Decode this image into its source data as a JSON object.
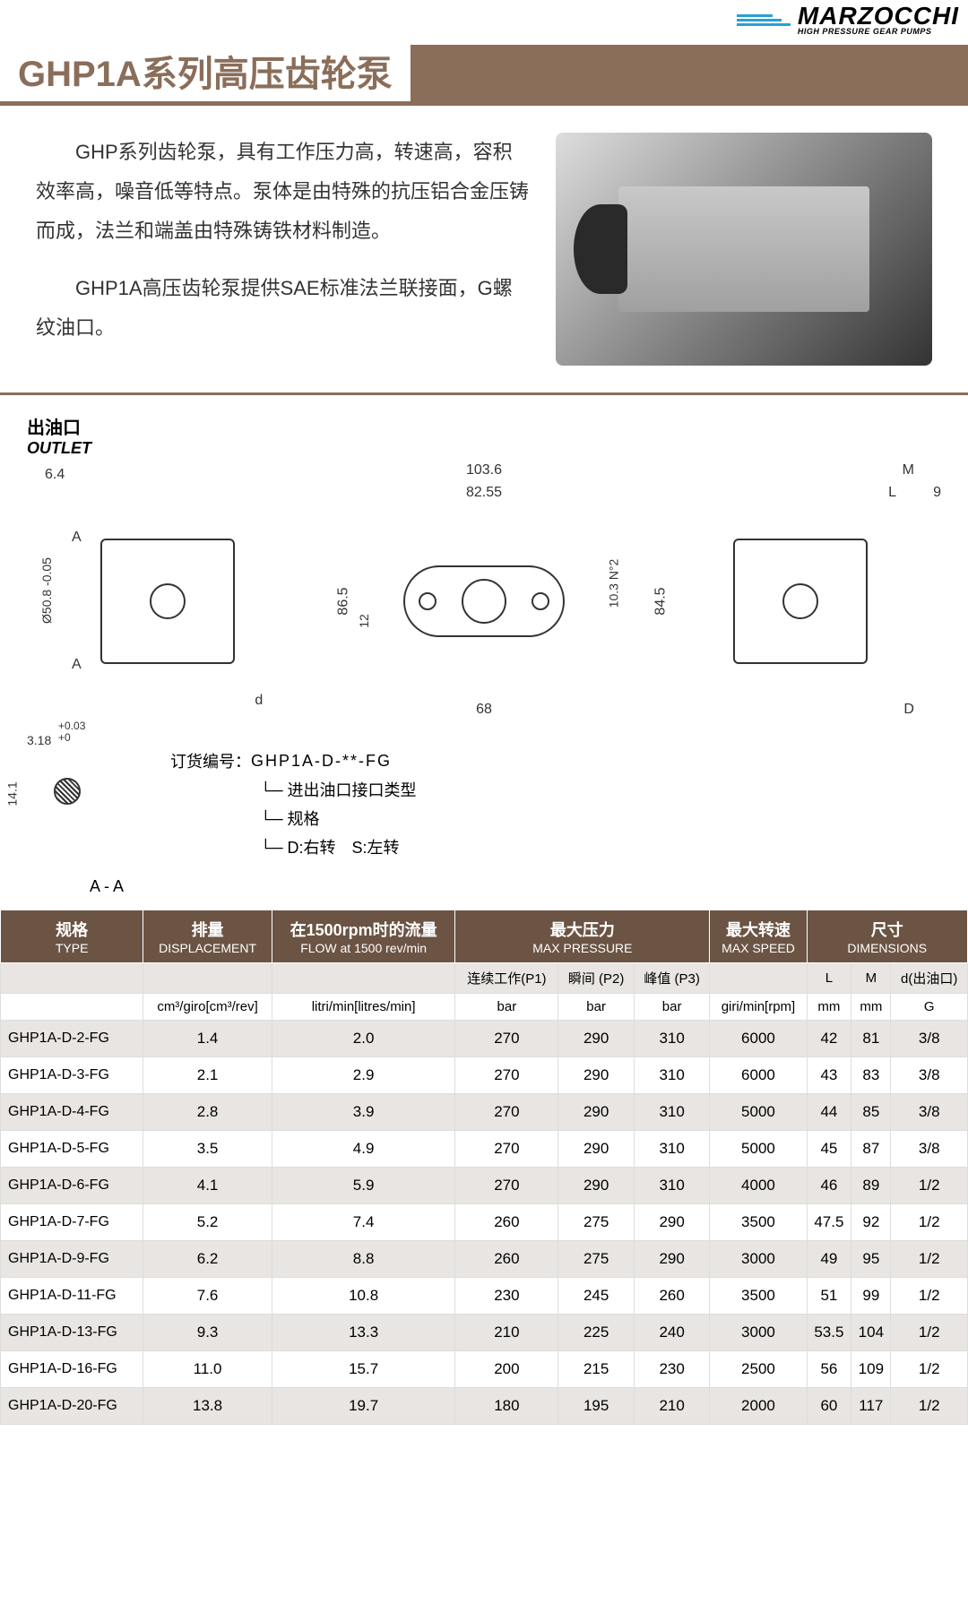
{
  "logo": {
    "brand": "MARZOCCHI",
    "tagline": "HIGH PRESSURE GEAR PUMPS"
  },
  "title": "GHP1A系列高压齿轮泵",
  "intro": {
    "p1": "GHP系列齿轮泵，具有工作压力高，转速高，容积效率高，噪音低等特点。泵体是由特殊的抗压铝合金压铸而成，法兰和端盖由特殊铸铁材料制造。",
    "p2": "GHP1A高压齿轮泵提供SAE标准法兰联接面，G螺纹油口。"
  },
  "outlet": {
    "cn": "出油口",
    "en": "OUTLET"
  },
  "dimensions": {
    "d1": "6.4",
    "d2": "Ø50.8 -0.05",
    "d2sup": "+0",
    "d3": "3.18",
    "d3tol1": "+0.03",
    "d3tol2": "+0",
    "d4": "14.1",
    "d5": "86.5",
    "d6": "12",
    "d7": "103.6",
    "d8": "82.55",
    "d9": "68",
    "d10": "10.3 N°2",
    "d11": "84.5",
    "d12": "M",
    "d13": "L",
    "d14": "9",
    "d15": "2",
    "dd": "d",
    "dD": "D",
    "A": "A",
    "AA": "A - A"
  },
  "order": {
    "label": "订货编号：",
    "code": "GHP1A-D-**-FG",
    "note1": "进出油口接口类型",
    "note2": "规格",
    "note3": "D:右转　S:左转"
  },
  "table": {
    "headers": {
      "type": {
        "cn": "规格",
        "en": "TYPE"
      },
      "disp": {
        "cn": "排量",
        "en": "DISPLACEMENT"
      },
      "flow": {
        "cn": "在1500rpm时的流量",
        "en": "FLOW at 1500 rev/min"
      },
      "press": {
        "cn": "最大压力",
        "en": "MAX PRESSURE"
      },
      "speed": {
        "cn": "最大转速",
        "en": "MAX SPEED"
      },
      "dim": {
        "cn": "尺寸",
        "en": "DIMENSIONS"
      }
    },
    "sub": {
      "p1": "连续工作(P1)",
      "p2": "瞬间 (P2)",
      "p3": "峰值 (P3)",
      "L": "L",
      "M": "M",
      "dout": "d(出油口)"
    },
    "units": {
      "disp": "cm³/giro[cm³/rev]",
      "flow": "litri/min[litres/min]",
      "bar": "bar",
      "speed": "giri/min[rpm]",
      "mm": "mm",
      "g": "G"
    },
    "rows": [
      {
        "type": "GHP1A-D-2-FG",
        "disp": "1.4",
        "flow": "2.0",
        "p1": "270",
        "p2": "290",
        "p3": "310",
        "speed": "6000",
        "L": "42",
        "M": "81",
        "d": "3/8"
      },
      {
        "type": "GHP1A-D-3-FG",
        "disp": "2.1",
        "flow": "2.9",
        "p1": "270",
        "p2": "290",
        "p3": "310",
        "speed": "6000",
        "L": "43",
        "M": "83",
        "d": "3/8"
      },
      {
        "type": "GHP1A-D-4-FG",
        "disp": "2.8",
        "flow": "3.9",
        "p1": "270",
        "p2": "290",
        "p3": "310",
        "speed": "5000",
        "L": "44",
        "M": "85",
        "d": "3/8"
      },
      {
        "type": "GHP1A-D-5-FG",
        "disp": "3.5",
        "flow": "4.9",
        "p1": "270",
        "p2": "290",
        "p3": "310",
        "speed": "5000",
        "L": "45",
        "M": "87",
        "d": "3/8"
      },
      {
        "type": "GHP1A-D-6-FG",
        "disp": "4.1",
        "flow": "5.9",
        "p1": "270",
        "p2": "290",
        "p3": "310",
        "speed": "4000",
        "L": "46",
        "M": "89",
        "d": "1/2"
      },
      {
        "type": "GHP1A-D-7-FG",
        "disp": "5.2",
        "flow": "7.4",
        "p1": "260",
        "p2": "275",
        "p3": "290",
        "speed": "3500",
        "L": "47.5",
        "M": "92",
        "d": "1/2"
      },
      {
        "type": "GHP1A-D-9-FG",
        "disp": "6.2",
        "flow": "8.8",
        "p1": "260",
        "p2": "275",
        "p3": "290",
        "speed": "3000",
        "L": "49",
        "M": "95",
        "d": "1/2"
      },
      {
        "type": "GHP1A-D-11-FG",
        "disp": "7.6",
        "flow": "10.8",
        "p1": "230",
        "p2": "245",
        "p3": "260",
        "speed": "3500",
        "L": "51",
        "M": "99",
        "d": "1/2"
      },
      {
        "type": "GHP1A-D-13-FG",
        "disp": "9.3",
        "flow": "13.3",
        "p1": "210",
        "p2": "225",
        "p3": "240",
        "speed": "3000",
        "L": "53.5",
        "M": "104",
        "d": "1/2"
      },
      {
        "type": "GHP1A-D-16-FG",
        "disp": "11.0",
        "flow": "15.7",
        "p1": "200",
        "p2": "215",
        "p3": "230",
        "speed": "2500",
        "L": "56",
        "M": "109",
        "d": "1/2"
      },
      {
        "type": "GHP1A-D-20-FG",
        "disp": "13.8",
        "flow": "19.7",
        "p1": "180",
        "p2": "195",
        "p3": "210",
        "speed": "2000",
        "L": "60",
        "M": "117",
        "d": "1/2"
      }
    ]
  },
  "colors": {
    "header_bg": "#6b5444",
    "title_color": "#8a6e5a",
    "row_alt": "#e8e5e2",
    "logo_blue": "#2a9fd6"
  }
}
